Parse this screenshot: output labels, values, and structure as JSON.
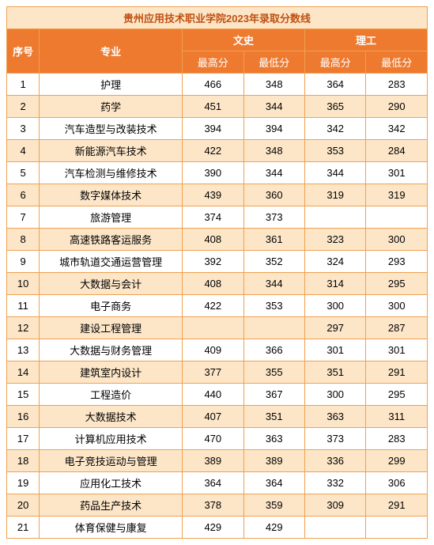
{
  "title": "贵州应用技术职业学院2023年录取分数线",
  "headers": {
    "index": "序号",
    "major": "专业",
    "wen": "文史",
    "li": "理工",
    "max": "最高分",
    "min": "最低分"
  },
  "colors": {
    "border": "#f0a050",
    "title_bg": "#fde6c8",
    "title_fg": "#c05010",
    "header_bg": "#ee7a30",
    "header_fg": "#ffffff",
    "row_even": "#fde6c8",
    "row_odd": "#ffffff"
  },
  "rows": [
    {
      "i": "1",
      "m": "护理",
      "wx": "466",
      "wn": "348",
      "lx": "364",
      "ln": "283"
    },
    {
      "i": "2",
      "m": "药学",
      "wx": "451",
      "wn": "344",
      "lx": "365",
      "ln": "290"
    },
    {
      "i": "3",
      "m": "汽车造型与改装技术",
      "wx": "394",
      "wn": "394",
      "lx": "342",
      "ln": "342"
    },
    {
      "i": "4",
      "m": "新能源汽车技术",
      "wx": "422",
      "wn": "348",
      "lx": "353",
      "ln": "284"
    },
    {
      "i": "5",
      "m": "汽车检测与维修技术",
      "wx": "390",
      "wn": "344",
      "lx": "344",
      "ln": "301"
    },
    {
      "i": "6",
      "m": "数字媒体技术",
      "wx": "439",
      "wn": "360",
      "lx": "319",
      "ln": "319"
    },
    {
      "i": "7",
      "m": "旅游管理",
      "wx": "374",
      "wn": "373",
      "lx": "",
      "ln": ""
    },
    {
      "i": "8",
      "m": "高速铁路客运服务",
      "wx": "408",
      "wn": "361",
      "lx": "323",
      "ln": "300"
    },
    {
      "i": "9",
      "m": "城市轨道交通运营管理",
      "wx": "392",
      "wn": "352",
      "lx": "324",
      "ln": "293"
    },
    {
      "i": "10",
      "m": "大数据与会计",
      "wx": "408",
      "wn": "344",
      "lx": "314",
      "ln": "295"
    },
    {
      "i": "11",
      "m": "电子商务",
      "wx": "422",
      "wn": "353",
      "lx": "300",
      "ln": "300"
    },
    {
      "i": "12",
      "m": "建设工程管理",
      "wx": "",
      "wn": "",
      "lx": "297",
      "ln": "287"
    },
    {
      "i": "13",
      "m": "大数据与财务管理",
      "wx": "409",
      "wn": "366",
      "lx": "301",
      "ln": "301"
    },
    {
      "i": "14",
      "m": "建筑室内设计",
      "wx": "377",
      "wn": "355",
      "lx": "351",
      "ln": "291"
    },
    {
      "i": "15",
      "m": "工程造价",
      "wx": "440",
      "wn": "367",
      "lx": "300",
      "ln": "295"
    },
    {
      "i": "16",
      "m": "大数据技术",
      "wx": "407",
      "wn": "351",
      "lx": "363",
      "ln": "311"
    },
    {
      "i": "17",
      "m": "计算机应用技术",
      "wx": "470",
      "wn": "363",
      "lx": "373",
      "ln": "283"
    },
    {
      "i": "18",
      "m": "电子竞技运动与管理",
      "wx": "389",
      "wn": "389",
      "lx": "336",
      "ln": "299"
    },
    {
      "i": "19",
      "m": "应用化工技术",
      "wx": "364",
      "wn": "364",
      "lx": "332",
      "ln": "306"
    },
    {
      "i": "20",
      "m": "药品生产技术",
      "wx": "378",
      "wn": "359",
      "lx": "309",
      "ln": "291"
    },
    {
      "i": "21",
      "m": "体育保健与康复",
      "wx": "429",
      "wn": "429",
      "lx": "",
      "ln": ""
    }
  ]
}
